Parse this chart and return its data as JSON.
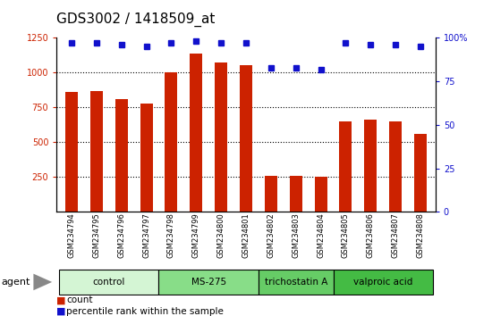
{
  "title": "GDS3002 / 1418509_at",
  "samples": [
    "GSM234794",
    "GSM234795",
    "GSM234796",
    "GSM234797",
    "GSM234798",
    "GSM234799",
    "GSM234800",
    "GSM234801",
    "GSM234802",
    "GSM234803",
    "GSM234804",
    "GSM234805",
    "GSM234806",
    "GSM234807",
    "GSM234808"
  ],
  "counts": [
    860,
    870,
    810,
    780,
    1000,
    1140,
    1075,
    1055,
    255,
    258,
    252,
    650,
    660,
    650,
    560
  ],
  "percentiles": [
    97,
    97,
    96,
    95,
    97,
    98,
    97,
    97,
    83,
    83,
    82,
    97,
    96,
    96,
    95
  ],
  "groups": [
    {
      "label": "control",
      "start": 0,
      "end": 4,
      "color": "#d4f5d4"
    },
    {
      "label": "MS-275",
      "start": 4,
      "end": 8,
      "color": "#88dd88"
    },
    {
      "label": "trichostatin A",
      "start": 8,
      "end": 11,
      "color": "#66cc66"
    },
    {
      "label": "valproic acid",
      "start": 11,
      "end": 15,
      "color": "#44bb44"
    }
  ],
  "bar_color": "#cc2200",
  "dot_color": "#1111cc",
  "ylim_left": [
    0,
    1250
  ],
  "ylim_right": [
    0,
    100
  ],
  "yticks_left": [
    250,
    500,
    750,
    1000,
    1250
  ],
  "yticks_right": [
    0,
    25,
    50,
    75,
    100
  ],
  "grid_lines": [
    250,
    500,
    750,
    1000
  ],
  "plot_bg_color": "#ffffff",
  "title_fontsize": 11,
  "tick_fontsize": 7,
  "bar_width": 0.5
}
